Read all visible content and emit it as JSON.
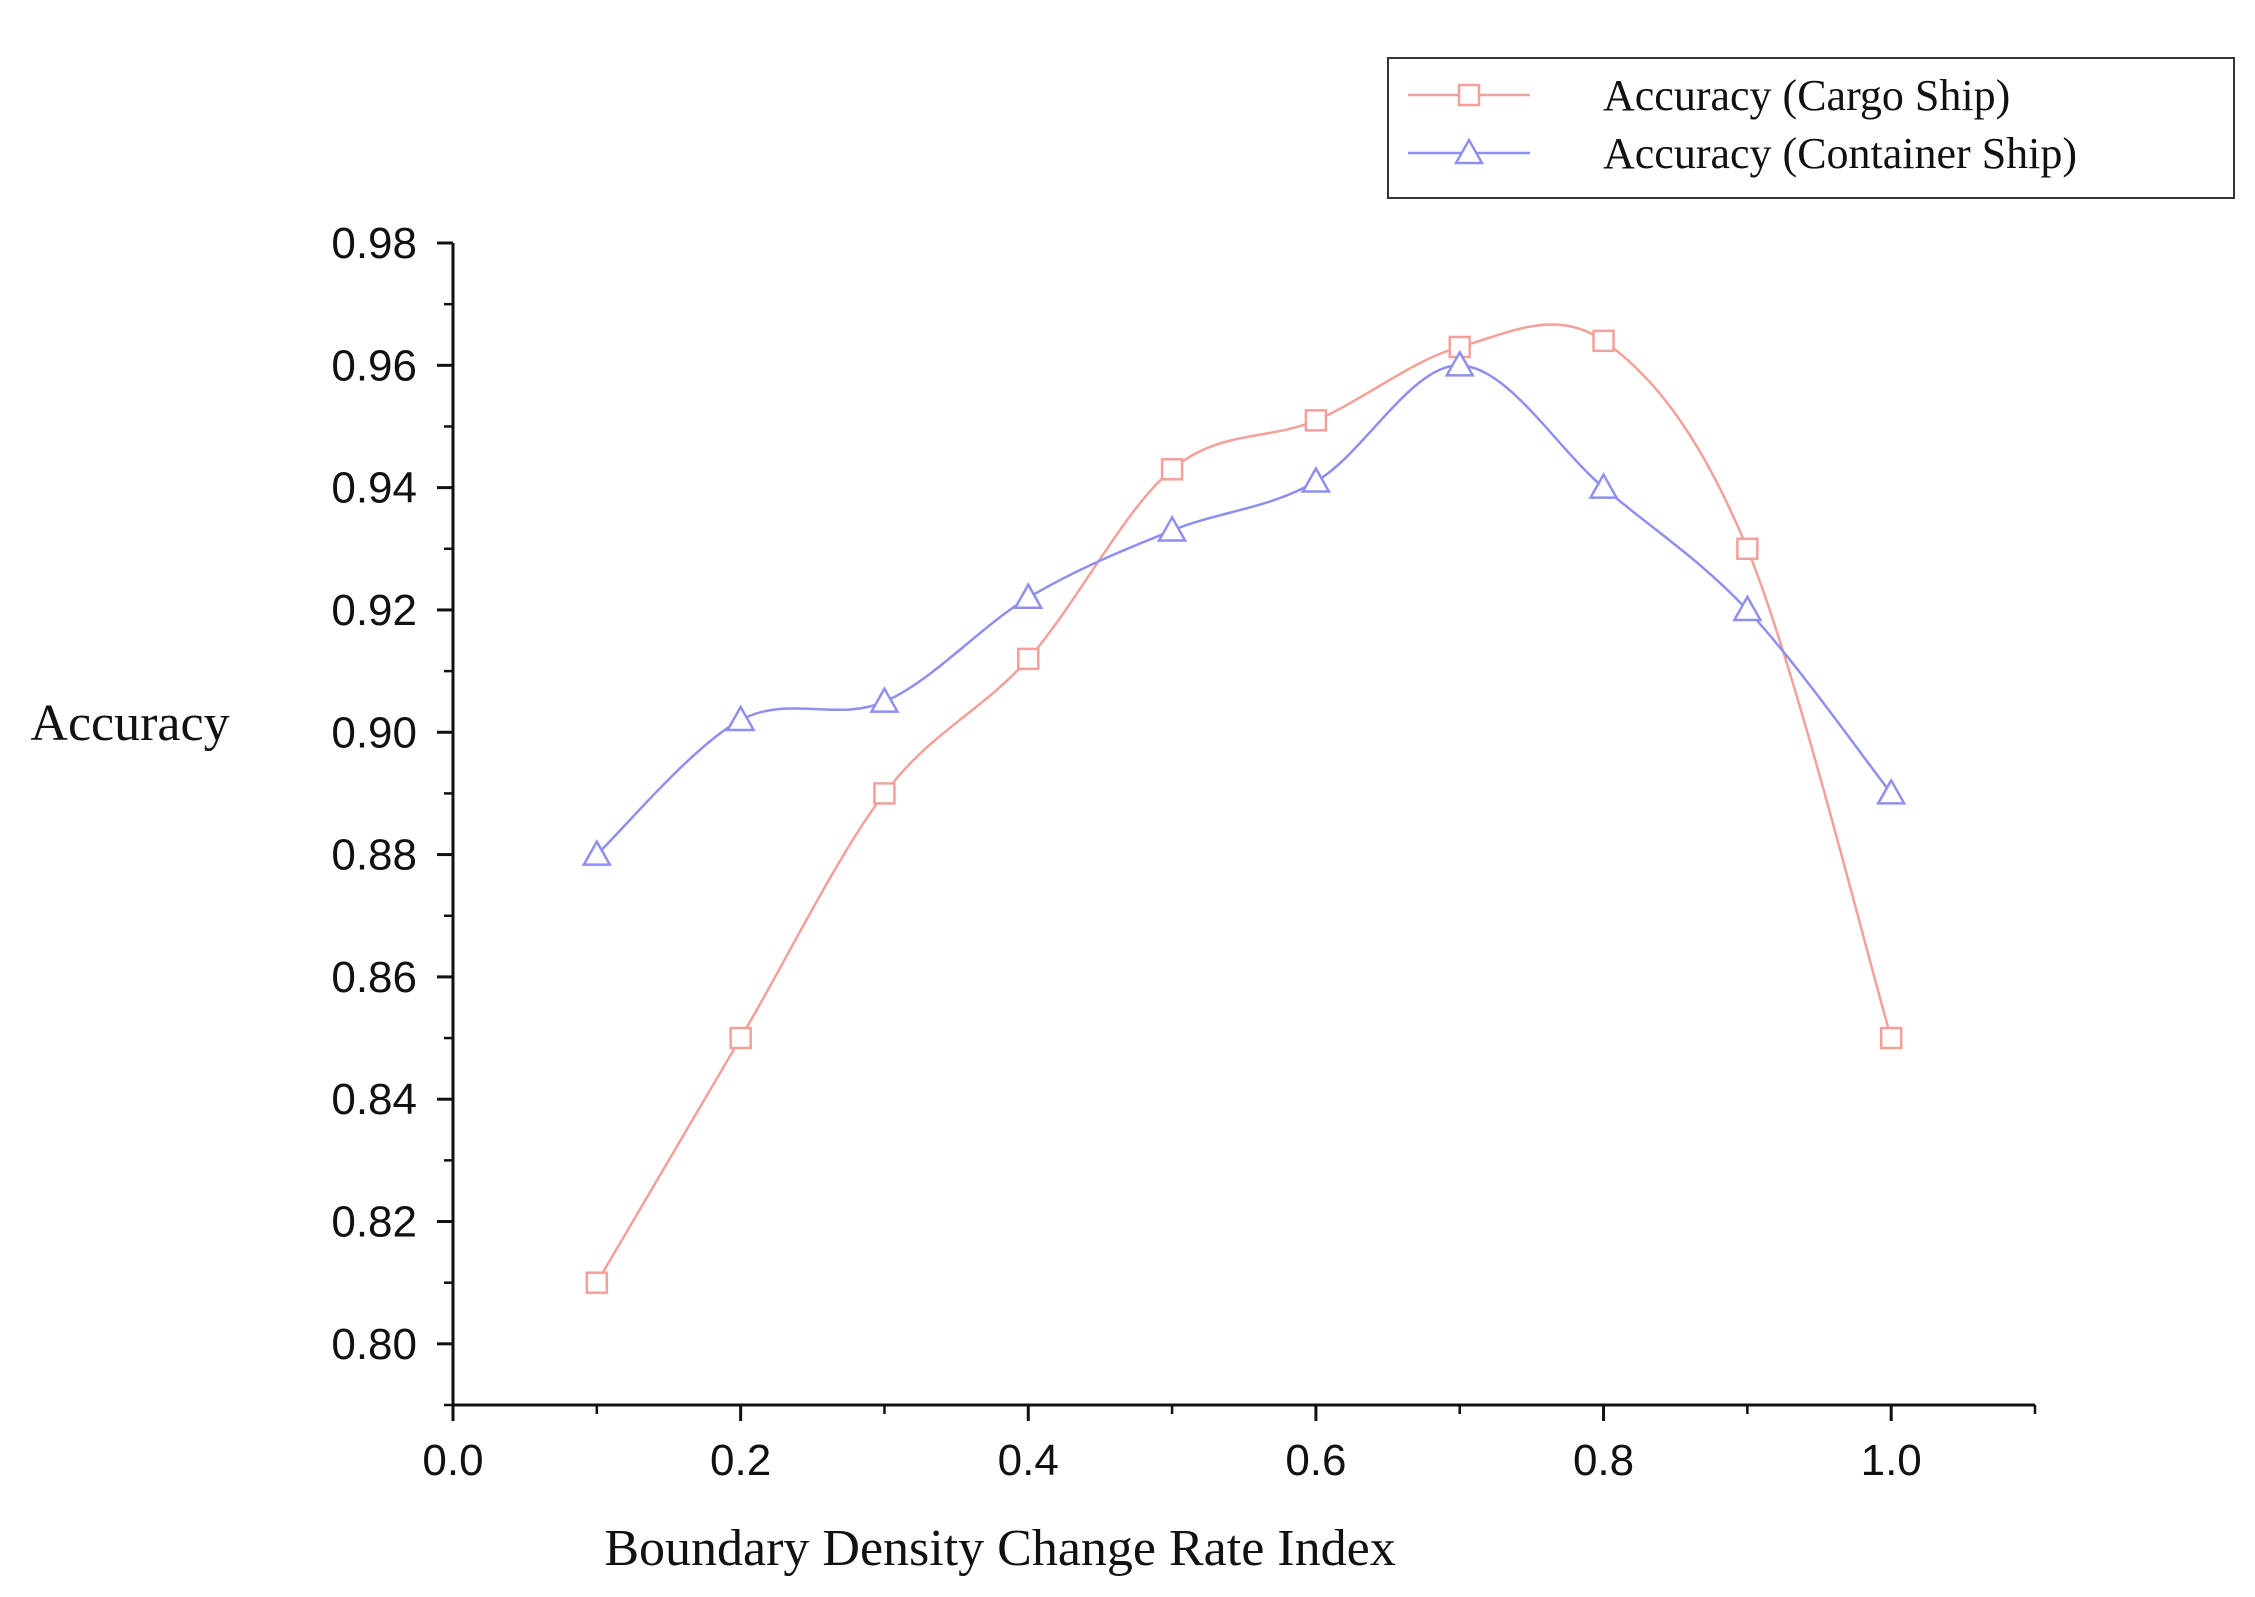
{
  "chart_data": {
    "type": "line",
    "xlabel": "Boundary Density  Change  Rate Index",
    "ylabel": "Accuracy",
    "xlim": [
      0.0,
      1.1
    ],
    "ylim": [
      0.79,
      0.98
    ],
    "x_ticks": [
      "0.0",
      "0.2",
      "0.4",
      "0.6",
      "0.8",
      "1.0"
    ],
    "y_ticks": [
      "0.80",
      "0.82",
      "0.84",
      "0.86",
      "0.88",
      "0.90",
      "0.92",
      "0.94",
      "0.96",
      "0.98"
    ],
    "x_tick_values": [
      0.0,
      0.2,
      0.4,
      0.6,
      0.8,
      1.0
    ],
    "y_tick_values": [
      0.8,
      0.82,
      0.84,
      0.86,
      0.88,
      0.9,
      0.92,
      0.94,
      0.96,
      0.98
    ],
    "x": [
      0.1,
      0.2,
      0.3,
      0.4,
      0.5,
      0.6,
      0.7,
      0.8,
      0.9,
      1.0
    ],
    "series": [
      {
        "name": "Accuracy (Cargo Ship)",
        "marker": "square",
        "color": "#f4a09a",
        "values": [
          0.81,
          0.85,
          0.89,
          0.912,
          0.943,
          0.951,
          0.963,
          0.964,
          0.93,
          0.85
        ]
      },
      {
        "name": "Accuracy (Container Ship)",
        "marker": "triangle",
        "color": "#8f8ff0",
        "values": [
          0.88,
          0.902,
          0.905,
          0.922,
          0.933,
          0.941,
          0.96,
          0.94,
          0.92,
          0.89
        ]
      }
    ],
    "legend_position": "top-right",
    "grid": false
  }
}
